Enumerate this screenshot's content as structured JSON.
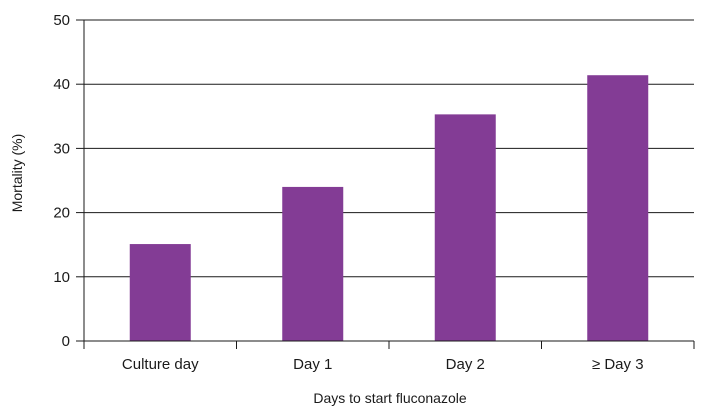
{
  "chart_data": {
    "type": "bar",
    "title": "",
    "xlabel": "Days to start fluconazole",
    "ylabel": "Mortality (%)",
    "categories": [
      "Culture day",
      "Day 1",
      "Day 2",
      "≥ Day 3"
    ],
    "values": [
      15.1,
      24.0,
      35.3,
      41.4
    ],
    "ylim": [
      0,
      50
    ],
    "yticks": [
      "0",
      "10",
      "20",
      "30",
      "40",
      "50"
    ],
    "grid": true,
    "legend": "none",
    "bar_color": "#833c95"
  }
}
